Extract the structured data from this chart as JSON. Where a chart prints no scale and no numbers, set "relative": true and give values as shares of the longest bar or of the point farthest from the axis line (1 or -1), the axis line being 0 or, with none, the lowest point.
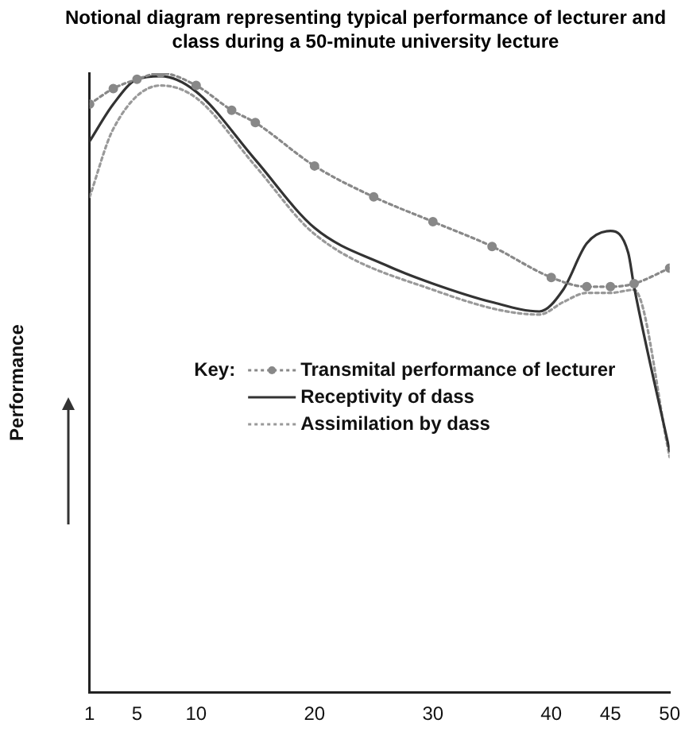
{
  "chart_data": {
    "type": "line",
    "title": "Notional diagram representing typical performance of lecturer and class during a 50-minute university lecture",
    "ylabel": "Performance",
    "legend_title": "Key:",
    "legend": "center",
    "relative": true,
    "xlim": [
      1,
      50
    ],
    "xticks": [
      1,
      5,
      10,
      20,
      30,
      40,
      45,
      50
    ],
    "grid": false,
    "series": [
      {
        "name": "Transmital performance of lecturer",
        "color": "#888888",
        "marker": "circle",
        "line_style": "dotted",
        "x": [
          1,
          3,
          5,
          7,
          10,
          13,
          15,
          20,
          25,
          30,
          35,
          40,
          43,
          45,
          47,
          50
        ],
        "values": [
          0.95,
          0.975,
          0.99,
          1.0,
          0.98,
          0.94,
          0.92,
          0.85,
          0.8,
          0.76,
          0.72,
          0.67,
          0.655,
          0.655,
          0.66,
          0.685
        ]
      },
      {
        "name": "Receptivity of dass",
        "color": "#333333",
        "marker": "none",
        "line_style": "solid",
        "x": [
          1,
          3,
          5,
          7,
          10,
          15,
          20,
          26,
          30,
          35,
          39,
          41,
          43,
          45,
          46.5,
          47,
          50
        ],
        "values": [
          0.89,
          0.95,
          0.99,
          0.995,
          0.97,
          0.86,
          0.75,
          0.69,
          0.66,
          0.63,
          0.615,
          0.65,
          0.725,
          0.745,
          0.71,
          0.655,
          0.39
        ]
      },
      {
        "name": "Assimilation by dass",
        "color": "#999999",
        "marker": "none",
        "line_style": "dotted",
        "x": [
          1,
          3,
          7,
          10,
          15,
          20,
          30,
          39,
          41,
          43,
          45,
          47,
          50
        ],
        "values": [
          0.8,
          0.91,
          0.98,
          0.96,
          0.85,
          0.74,
          0.65,
          0.61,
          0.63,
          0.645,
          0.645,
          0.65,
          0.38
        ]
      }
    ]
  }
}
